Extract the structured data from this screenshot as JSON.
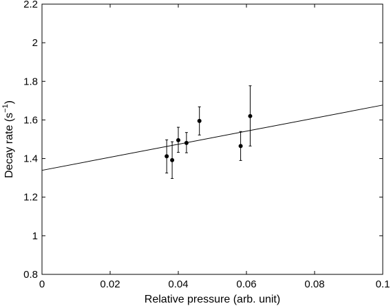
{
  "chart_data": {
    "type": "scatter",
    "title": "",
    "xlabel": "Relative pressure (arb. unit)",
    "ylabel_main": "Decay rate (s",
    "ylabel_sup": "−1",
    "ylabel_close": ")",
    "xlim": [
      0,
      0.1
    ],
    "ylim": [
      0.8,
      2.2
    ],
    "xticks": [
      0,
      0.02,
      0.04,
      0.06,
      0.08,
      0.1
    ],
    "xtick_labels": [
      "0",
      "0.02",
      "0.04",
      "0.06",
      "0.08",
      "0.1"
    ],
    "yticks": [
      0.8,
      1.0,
      1.2,
      1.4,
      1.6,
      1.8,
      2.0,
      2.2
    ],
    "ytick_labels": [
      "0.8",
      "1",
      "1.2",
      "1.4",
      "1.6",
      "1.8",
      "2",
      "2.2"
    ],
    "grid": false,
    "series": [
      {
        "points": [
          {
            "x": 0.0366,
            "y": 1.412,
            "err_low": 1.325,
            "err_high": 1.497
          },
          {
            "x": 0.0382,
            "y": 1.392,
            "err_low": 1.297,
            "err_high": 1.487
          },
          {
            "x": 0.04,
            "y": 1.495,
            "err_low": 1.432,
            "err_high": 1.562
          },
          {
            "x": 0.0424,
            "y": 1.481,
            "err_low": 1.43,
            "err_high": 1.535
          },
          {
            "x": 0.0462,
            "y": 1.595,
            "err_low": 1.522,
            "err_high": 1.668
          },
          {
            "x": 0.0583,
            "y": 1.465,
            "err_low": 1.39,
            "err_high": 1.54
          },
          {
            "x": 0.0611,
            "y": 1.62,
            "err_low": 1.465,
            "err_high": 1.777
          }
        ]
      }
    ],
    "fit_line": {
      "x0": 0,
      "y0": 1.339,
      "x1": 0.1,
      "y1": 1.677
    }
  }
}
